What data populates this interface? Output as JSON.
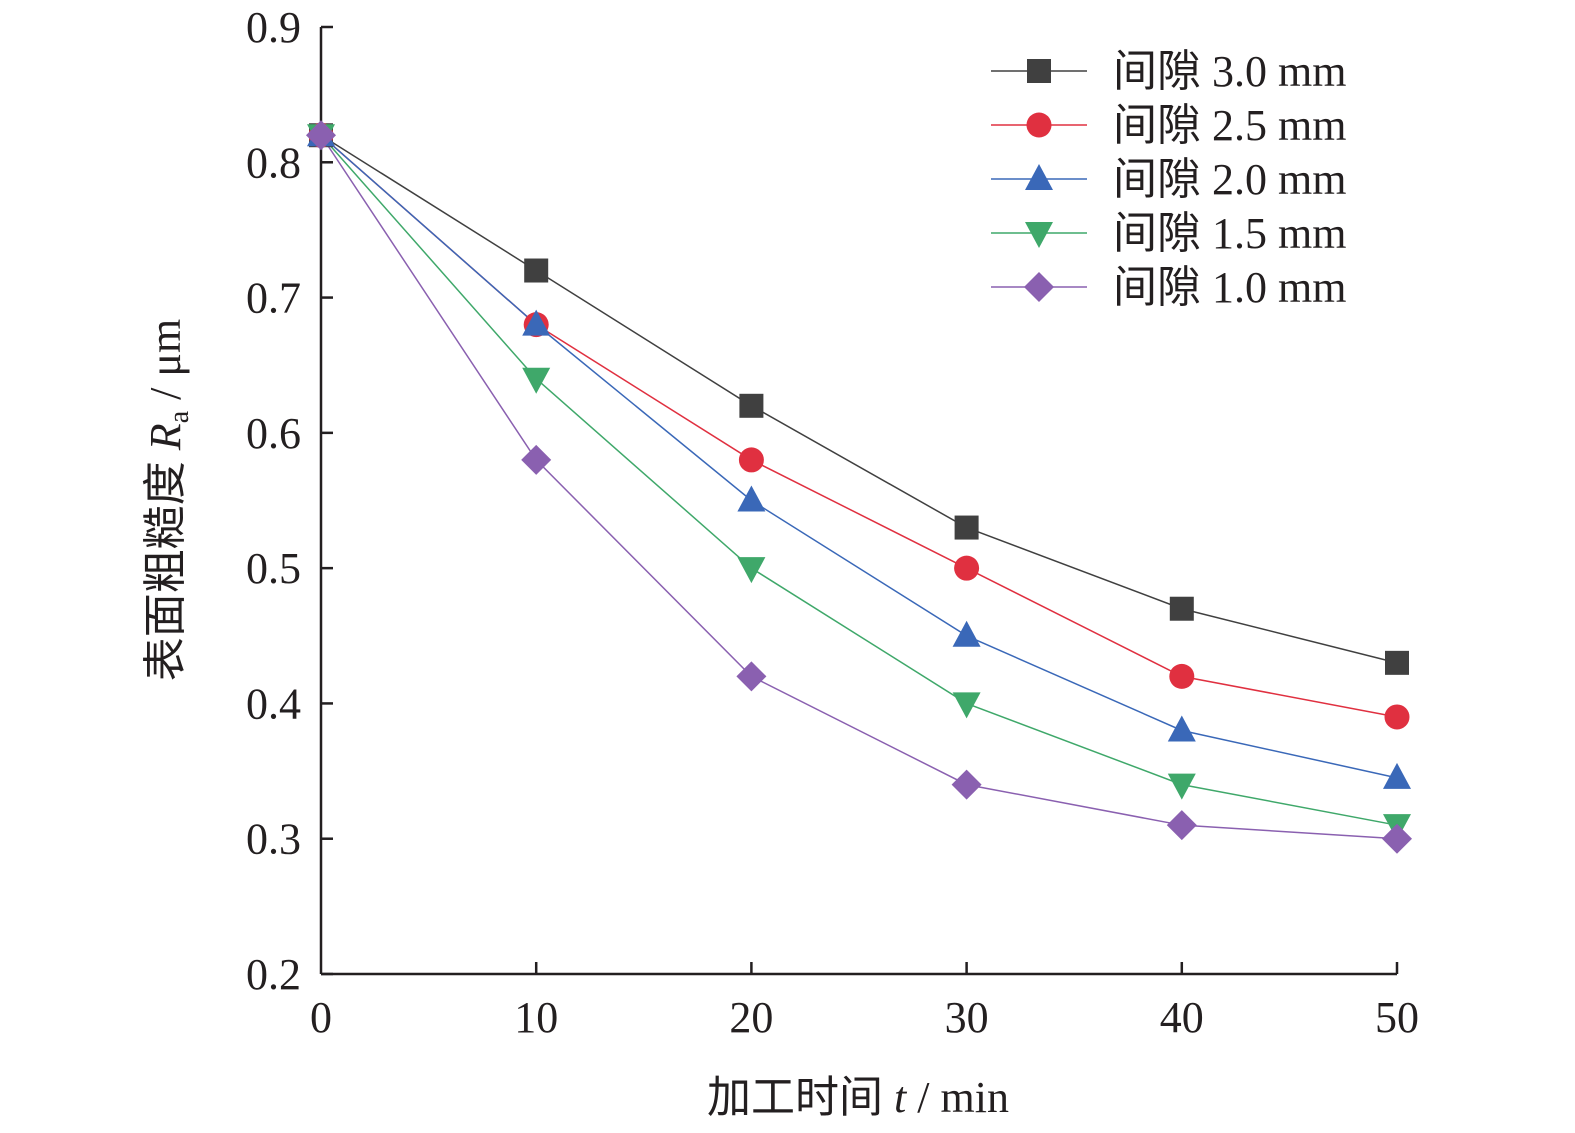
{
  "chart_data": {
    "type": "line",
    "x": [
      0,
      10,
      20,
      30,
      40,
      50
    ],
    "xlabel": {
      "prefix": "加工时间 ",
      "var": "t",
      "suffix": " / min"
    },
    "ylabel": {
      "prefix": "表面粗糙度 ",
      "var": "R",
      "sub": "a",
      "suffix": " / μm"
    },
    "xlim": [
      0,
      50
    ],
    "ylim": [
      0.2,
      0.9
    ],
    "xticks": [
      "0",
      "10",
      "20",
      "30",
      "40",
      "50"
    ],
    "yticks": [
      "0.2",
      "0.3",
      "0.4",
      "0.5",
      "0.6",
      "0.7",
      "0.8",
      "0.9"
    ],
    "grid": false,
    "legend_position": "top-right",
    "series": [
      {
        "name": "间隙 3.0 mm",
        "marker": "square",
        "color": "#404040",
        "values": [
          0.82,
          0.72,
          0.62,
          0.53,
          0.47,
          0.43
        ]
      },
      {
        "name": "间隙 2.5 mm",
        "marker": "circle",
        "color": "#e03040",
        "values": [
          0.82,
          0.68,
          0.58,
          0.5,
          0.42,
          0.39
        ]
      },
      {
        "name": "间隙 2.0 mm",
        "marker": "triangle-up",
        "color": "#3a68b8",
        "values": [
          0.82,
          0.68,
          0.55,
          0.45,
          0.38,
          0.345
        ]
      },
      {
        "name": "间隙 1.5 mm",
        "marker": "triangle-down",
        "color": "#3fa86a",
        "values": [
          0.82,
          0.64,
          0.5,
          0.4,
          0.34,
          0.31
        ]
      },
      {
        "name": "间隙 1.0 mm",
        "marker": "diamond",
        "color": "#8a60b0",
        "values": [
          0.82,
          0.58,
          0.42,
          0.34,
          0.31,
          0.3
        ]
      }
    ]
  }
}
